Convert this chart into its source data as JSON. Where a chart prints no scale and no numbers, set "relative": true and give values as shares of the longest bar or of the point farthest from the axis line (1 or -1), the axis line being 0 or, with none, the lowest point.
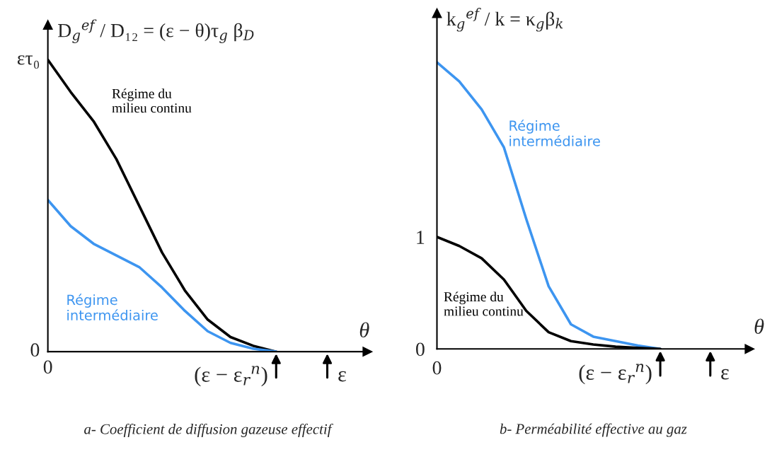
{
  "chart_data": [
    {
      "type": "line",
      "ylabel": "D$_{g}$$^{ef}$ / D₁₂ = (ε − θ)τ$_{g}$ β$_{D}$",
      "xlabel": "θ",
      "title": "a- Coefficient de diffusion gazeuse effectif",
      "categories": [
        null,
        null,
        null,
        null,
        null,
        null,
        null,
        null,
        null,
        null,
        null,
        null,
        null,
        null,
        null
      ],
      "series": [
        {
          "name": "Régime du\nmilieu continu",
          "color": "#000000",
          "values": [
            1.0,
            0.89,
            0.79,
            0.66,
            0.5,
            0.34,
            0.21,
            0.11,
            0.05,
            0.02,
            0.0,
            null,
            null,
            null,
            null
          ]
        },
        {
          "name": "Régime\nintermédiaire",
          "color": "#3d95f0",
          "values": [
            0.52,
            0.43,
            0.37,
            0.33,
            0.29,
            0.22,
            0.14,
            0.07,
            0.03,
            0.01,
            0.0,
            null,
            null,
            null,
            null
          ]
        }
      ],
      "relative": true,
      "annotations": [
        "(ε − ε$_{r}$$^{n}$)",
        "ε",
        "0",
        "ετ₀",
        "0"
      ],
      "grid": false,
      "legend": false
    },
    {
      "type": "line",
      "ylabel": "k$_{g}$$^{ef}$ / k = κ$_{g}$β$_{k}$",
      "xlabel": "θ",
      "title": "b- Perméabilité effective au gaz",
      "categories": [
        "0",
        null,
        null,
        null,
        null,
        null,
        null,
        null,
        null,
        null,
        null,
        null,
        null,
        null,
        null
      ],
      "series": [
        {
          "name": "Régime\nintermédiaire",
          "color": "#3d95f0",
          "values": [
            2.56,
            2.39,
            2.14,
            1.8,
            1.16,
            0.56,
            0.22,
            0.11,
            0.07,
            0.03,
            0.0,
            null,
            null,
            null,
            null
          ]
        },
        {
          "name": "Régime du\nmilieu continu",
          "color": "#000000",
          "values": [
            1.0,
            0.92,
            0.81,
            0.62,
            0.34,
            0.15,
            0.07,
            0.04,
            0.02,
            0.01,
            0.0,
            null,
            null,
            null,
            null
          ]
        }
      ],
      "ylim": [
        0,
        3.0
      ],
      "yticks": [
        0,
        1
      ],
      "annotations": [
        "(ε − ε$_{r}$$^{n}$)",
        "ε"
      ],
      "grid": false,
      "legend": false
    }
  ]
}
